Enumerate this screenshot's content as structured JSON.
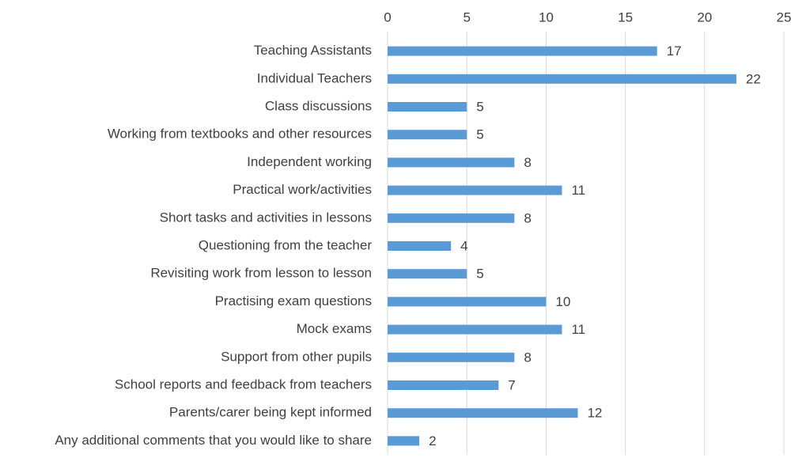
{
  "chart_data": {
    "type": "barh",
    "categories": [
      "Teaching Assistants",
      "Individual Teachers",
      "Class discussions",
      "Working from textbooks and other resources",
      "Independent working",
      "Practical work/activities",
      "Short tasks and activities in lessons",
      "Questioning from the teacher",
      "Revisiting work from lesson to lesson",
      "Practising exam questions",
      "Mock exams",
      "Support from other pupils",
      "School reports and feedback from teachers",
      "Parents/carer being kept informed",
      "Any additional comments that you would like to share"
    ],
    "values": [
      17,
      22,
      5,
      5,
      8,
      11,
      8,
      4,
      5,
      10,
      11,
      8,
      7,
      12,
      2
    ],
    "color": "#5b9bd5",
    "xlim": [
      0,
      25
    ],
    "xticks": [
      0,
      5,
      10,
      15,
      20,
      25
    ],
    "grid": true
  }
}
